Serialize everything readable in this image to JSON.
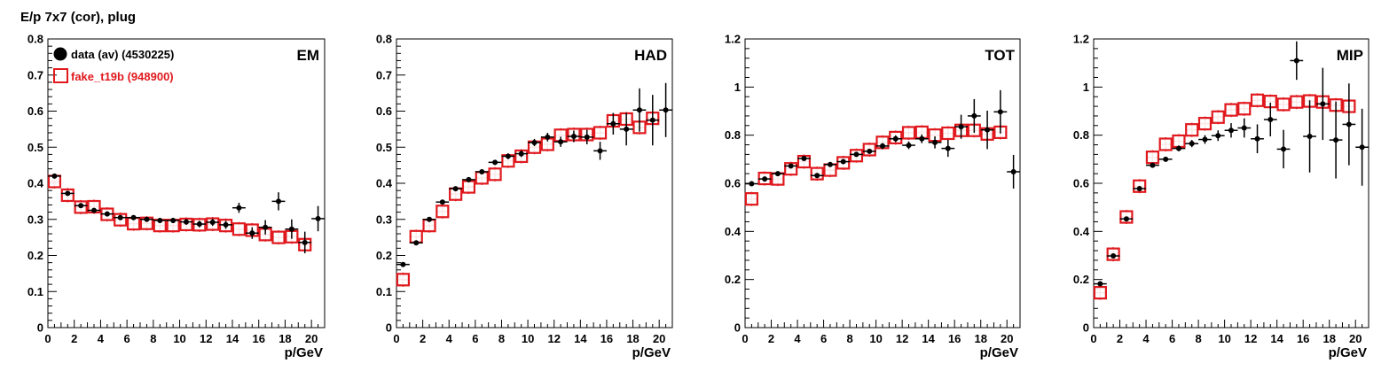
{
  "figure_title": "E/p 7x7 (cor), plug",
  "colors": {
    "data": "#000000",
    "fake": "#e0191e",
    "axis": "#000000"
  },
  "legend": {
    "entries": [
      {
        "label": "data (av) (4530225)",
        "marker": "filled-circle",
        "color": "#000000"
      },
      {
        "label": "fake_t19b (948900)",
        "marker": "open-square",
        "color": "#e0191e"
      }
    ]
  },
  "chart_data": [
    {
      "type": "scatter",
      "panel_label": "EM",
      "xlabel": "p/GeV",
      "ylabel": "",
      "xlim": [
        0,
        21
      ],
      "ylim": [
        0,
        0.8
      ],
      "xticks": [
        0,
        2,
        4,
        6,
        8,
        10,
        12,
        14,
        16,
        18,
        20
      ],
      "yticks": [
        0,
        0.1,
        0.2,
        0.3,
        0.4,
        0.5,
        0.6,
        0.7,
        0.8
      ],
      "ytick_labels": [
        "0",
        "0.1",
        "0.2",
        "0.3",
        "0.4",
        "0.5",
        "0.6",
        "0.7",
        "0.8"
      ],
      "series": [
        {
          "name": "data (av) (4530225)",
          "x": [
            0.5,
            1.5,
            2.5,
            3.5,
            4.5,
            5.5,
            6.5,
            7.5,
            8.5,
            9.5,
            10.5,
            11.5,
            12.5,
            13.5,
            14.5,
            15.5,
            16.5,
            17.5,
            18.5,
            19.5,
            20.5
          ],
          "y": [
            0.42,
            0.372,
            0.338,
            0.325,
            0.315,
            0.305,
            0.305,
            0.3,
            0.297,
            0.297,
            0.293,
            0.287,
            0.292,
            0.285,
            0.332,
            0.262,
            0.278,
            0.35,
            0.273,
            0.236,
            0.302
          ],
          "err": [
            0.005,
            0.005,
            0.005,
            0.005,
            0.005,
            0.005,
            0.005,
            0.006,
            0.006,
            0.007,
            0.008,
            0.009,
            0.01,
            0.011,
            0.014,
            0.016,
            0.02,
            0.025,
            0.027,
            0.03,
            0.035
          ]
        },
        {
          "name": "fake_t19b (948900)",
          "x": [
            0.5,
            1.5,
            2.5,
            3.5,
            4.5,
            5.5,
            6.5,
            7.5,
            8.5,
            9.5,
            10.5,
            11.5,
            12.5,
            13.5,
            14.5,
            15.5,
            16.5,
            17.5,
            18.5,
            19.5
          ],
          "y": [
            0.405,
            0.367,
            0.334,
            0.335,
            0.314,
            0.299,
            0.288,
            0.289,
            0.283,
            0.283,
            0.286,
            0.285,
            0.287,
            0.283,
            0.273,
            0.27,
            0.258,
            0.25,
            0.252,
            0.23
          ],
          "err": [
            0.01,
            0.008,
            0.007,
            0.007,
            0.007,
            0.007,
            0.007,
            0.007,
            0.007,
            0.007,
            0.007,
            0.007,
            0.008,
            0.008,
            0.008,
            0.009,
            0.009,
            0.01,
            0.011,
            0.012
          ]
        }
      ]
    },
    {
      "type": "scatter",
      "panel_label": "HAD",
      "xlabel": "p/GeV",
      "ylabel": "",
      "xlim": [
        0,
        21
      ],
      "ylim": [
        0,
        0.8
      ],
      "xticks": [
        0,
        2,
        4,
        6,
        8,
        10,
        12,
        14,
        16,
        18,
        20
      ],
      "yticks": [
        0,
        0.1,
        0.2,
        0.3,
        0.4,
        0.5,
        0.6,
        0.7,
        0.8
      ],
      "ytick_labels": [
        "0",
        "0.1",
        "0.2",
        "0.3",
        "0.4",
        "0.5",
        "0.6",
        "0.7",
        "0.8"
      ],
      "series": [
        {
          "name": "data (av) (4530225)",
          "x": [
            0.5,
            1.5,
            2.5,
            3.5,
            4.5,
            5.5,
            6.5,
            7.5,
            8.5,
            9.5,
            10.5,
            11.5,
            12.5,
            13.5,
            14.5,
            15.5,
            16.5,
            17.5,
            18.5,
            19.5,
            20.5
          ],
          "y": [
            0.175,
            0.235,
            0.3,
            0.348,
            0.385,
            0.41,
            0.432,
            0.458,
            0.475,
            0.482,
            0.513,
            0.528,
            0.515,
            0.53,
            0.528,
            0.49,
            0.565,
            0.55,
            0.603,
            0.575,
            0.603
          ],
          "err": [
            0.005,
            0.005,
            0.005,
            0.005,
            0.005,
            0.006,
            0.006,
            0.007,
            0.008,
            0.009,
            0.01,
            0.012,
            0.014,
            0.016,
            0.02,
            0.025,
            0.03,
            0.045,
            0.06,
            0.07,
            0.075
          ]
        },
        {
          "name": "fake_t19b (948900)",
          "x": [
            0.5,
            1.5,
            2.5,
            3.5,
            4.5,
            5.5,
            6.5,
            7.5,
            8.5,
            9.5,
            10.5,
            11.5,
            12.5,
            13.5,
            14.5,
            15.5,
            16.5,
            17.5,
            18.5,
            19.5
          ],
          "y": [
            0.133,
            0.252,
            0.283,
            0.322,
            0.37,
            0.39,
            0.415,
            0.425,
            0.462,
            0.475,
            0.5,
            0.508,
            0.533,
            0.535,
            0.535,
            0.54,
            0.573,
            0.578,
            0.555,
            0.58
          ],
          "err": [
            0.012,
            0.01,
            0.009,
            0.009,
            0.009,
            0.009,
            0.009,
            0.009,
            0.009,
            0.009,
            0.009,
            0.009,
            0.01,
            0.01,
            0.01,
            0.012,
            0.013,
            0.014,
            0.015,
            0.016
          ]
        }
      ]
    },
    {
      "type": "scatter",
      "panel_label": "TOT",
      "xlabel": "p/GeV",
      "ylabel": "",
      "xlim": [
        0,
        21
      ],
      "ylim": [
        0,
        1.2
      ],
      "xticks": [
        0,
        2,
        4,
        6,
        8,
        10,
        12,
        14,
        16,
        18,
        20
      ],
      "yticks": [
        0,
        0.2,
        0.4,
        0.6,
        0.8,
        1,
        1.2
      ],
      "ytick_labels": [
        "0",
        "0.2",
        "0.4",
        "0.6",
        "0.8",
        "1",
        "1.2"
      ],
      "series": [
        {
          "name": "data (av) (4530225)",
          "x": [
            0.5,
            1.5,
            2.5,
            3.5,
            4.5,
            5.5,
            6.5,
            7.5,
            8.5,
            9.5,
            10.5,
            11.5,
            12.5,
            13.5,
            14.5,
            15.5,
            16.5,
            17.5,
            18.5,
            19.5,
            20.5
          ],
          "y": [
            0.598,
            0.618,
            0.64,
            0.672,
            0.703,
            0.632,
            0.678,
            0.69,
            0.72,
            0.733,
            0.755,
            0.785,
            0.758,
            0.785,
            0.77,
            0.745,
            0.835,
            0.88,
            0.822,
            0.897,
            0.648
          ],
          "err": [
            0.005,
            0.005,
            0.005,
            0.005,
            0.005,
            0.006,
            0.007,
            0.008,
            0.009,
            0.01,
            0.012,
            0.014,
            0.016,
            0.018,
            0.025,
            0.035,
            0.05,
            0.07,
            0.08,
            0.09,
            0.07
          ]
        },
        {
          "name": "fake_t19b (948900)",
          "x": [
            0.5,
            1.5,
            2.5,
            3.5,
            4.5,
            5.5,
            6.5,
            7.5,
            8.5,
            9.5,
            10.5,
            11.5,
            12.5,
            13.5,
            14.5,
            15.5,
            16.5,
            17.5,
            18.5,
            19.5
          ],
          "y": [
            0.535,
            0.62,
            0.618,
            0.66,
            0.69,
            0.64,
            0.655,
            0.685,
            0.715,
            0.74,
            0.77,
            0.79,
            0.81,
            0.812,
            0.8,
            0.808,
            0.82,
            0.82,
            0.805,
            0.812
          ],
          "err": [
            0.02,
            0.012,
            0.012,
            0.012,
            0.012,
            0.012,
            0.012,
            0.012,
            0.012,
            0.012,
            0.012,
            0.012,
            0.013,
            0.013,
            0.014,
            0.015,
            0.016,
            0.017,
            0.018,
            0.02
          ]
        }
      ]
    },
    {
      "type": "scatter",
      "panel_label": "MIP",
      "xlabel": "p/GeV",
      "ylabel": "",
      "xlim": [
        0,
        21
      ],
      "ylim": [
        0,
        1.2
      ],
      "xticks": [
        0,
        2,
        4,
        6,
        8,
        10,
        12,
        14,
        16,
        18,
        20
      ],
      "yticks": [
        0,
        0.2,
        0.4,
        0.6,
        0.8,
        1,
        1.2
      ],
      "ytick_labels": [
        "0",
        "0.2",
        "0.4",
        "0.6",
        "0.8",
        "1",
        "1.2"
      ],
      "series": [
        {
          "name": "data (av) (4530225)",
          "x": [
            0.5,
            1.5,
            2.5,
            3.5,
            4.5,
            5.5,
            6.5,
            7.5,
            8.5,
            9.5,
            10.5,
            11.5,
            12.5,
            13.5,
            14.5,
            15.5,
            16.5,
            17.5,
            18.5,
            19.5,
            20.5
          ],
          "y": [
            0.182,
            0.298,
            0.452,
            0.578,
            0.675,
            0.7,
            0.745,
            0.765,
            0.782,
            0.798,
            0.82,
            0.83,
            0.785,
            0.865,
            0.742,
            1.11,
            0.795,
            0.93,
            0.78,
            0.845,
            0.75
          ],
          "err": [
            0.005,
            0.008,
            0.008,
            0.008,
            0.008,
            0.01,
            0.012,
            0.015,
            0.018,
            0.022,
            0.03,
            0.04,
            0.06,
            0.07,
            0.08,
            0.08,
            0.15,
            0.15,
            0.16,
            0.17,
            0.16
          ]
        },
        {
          "name": "fake_t19b (948900)",
          "x": [
            0.5,
            1.5,
            2.5,
            3.5,
            4.5,
            5.5,
            6.5,
            7.5,
            8.5,
            9.5,
            10.5,
            11.5,
            12.5,
            13.5,
            14.5,
            15.5,
            16.5,
            17.5,
            18.5,
            19.5
          ],
          "y": [
            0.145,
            0.305,
            0.46,
            0.588,
            0.708,
            0.762,
            0.775,
            0.822,
            0.848,
            0.875,
            0.905,
            0.91,
            0.945,
            0.94,
            0.928,
            0.938,
            0.942,
            0.938,
            0.925,
            0.92
          ],
          "err": [
            0.015,
            0.012,
            0.012,
            0.012,
            0.012,
            0.012,
            0.012,
            0.012,
            0.012,
            0.012,
            0.012,
            0.012,
            0.013,
            0.013,
            0.014,
            0.015,
            0.016,
            0.017,
            0.018,
            0.02
          ]
        }
      ]
    }
  ]
}
